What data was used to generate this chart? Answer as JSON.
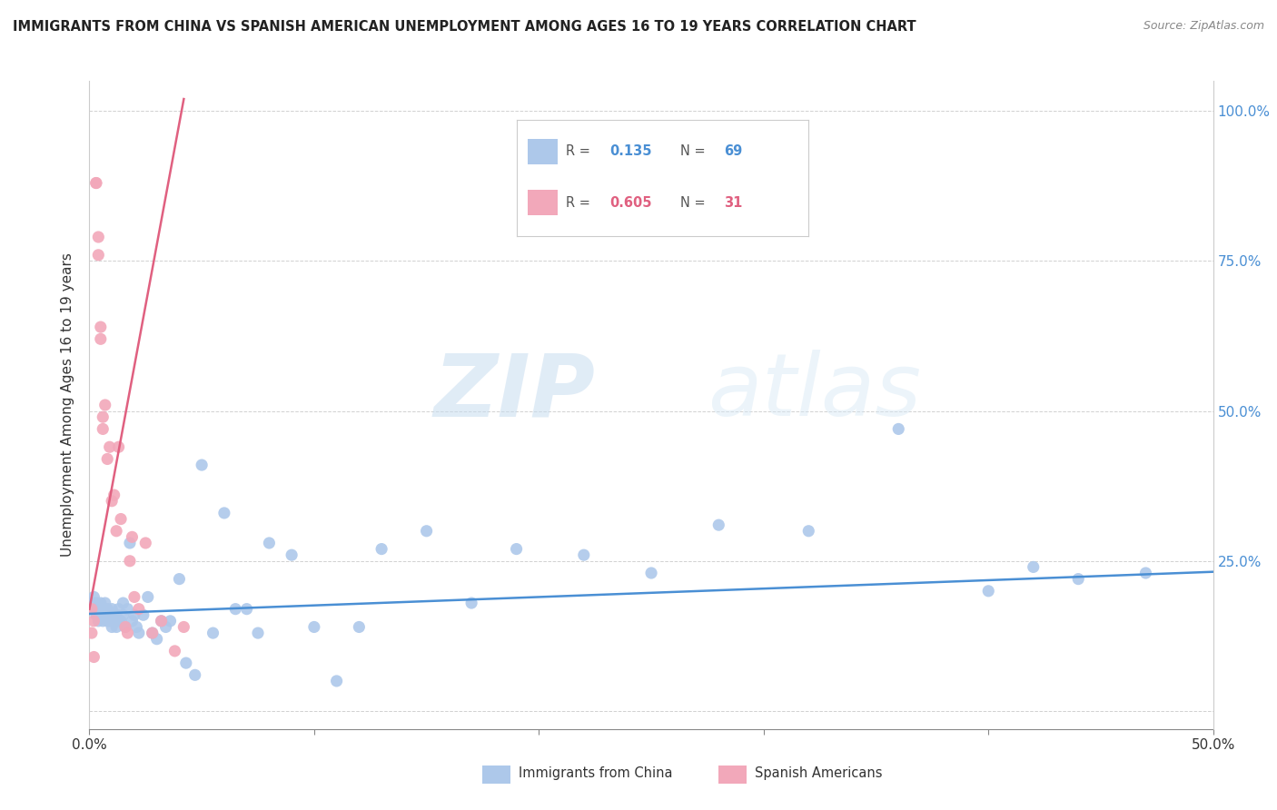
{
  "title": "IMMIGRANTS FROM CHINA VS SPANISH AMERICAN UNEMPLOYMENT AMONG AGES 16 TO 19 YEARS CORRELATION CHART",
  "source": "Source: ZipAtlas.com",
  "ylabel": "Unemployment Among Ages 16 to 19 years",
  "watermark_zip": "ZIP",
  "watermark_atlas": "atlas",
  "legend_blue_r": "0.135",
  "legend_blue_n": "69",
  "legend_pink_r": "0.605",
  "legend_pink_n": "31",
  "legend_label_blue": "Immigrants from China",
  "legend_label_pink": "Spanish Americans",
  "blue_color": "#adc8ea",
  "pink_color": "#f2a8ba",
  "blue_line_color": "#4a8fd4",
  "pink_line_color": "#e06080",
  "right_tick_color": "#4a8fd4",
  "xlim": [
    0.0,
    0.5
  ],
  "ylim": [
    -0.03,
    1.05
  ],
  "ytick_values": [
    0.0,
    0.25,
    0.5,
    0.75,
    1.0
  ],
  "ytick_right_labels": [
    "",
    "25.0%",
    "50.0%",
    "75.0%",
    "100.0%"
  ],
  "xtick_positions": [
    0.0,
    0.1,
    0.2,
    0.3,
    0.4,
    0.5
  ],
  "xtick_labels": [
    "0.0%",
    "",
    "",
    "",
    "",
    "50.0%"
  ],
  "blue_scatter_x": [
    0.001,
    0.002,
    0.002,
    0.003,
    0.003,
    0.004,
    0.004,
    0.005,
    0.005,
    0.006,
    0.006,
    0.007,
    0.007,
    0.008,
    0.008,
    0.009,
    0.009,
    0.01,
    0.01,
    0.011,
    0.011,
    0.012,
    0.012,
    0.013,
    0.013,
    0.014,
    0.015,
    0.015,
    0.016,
    0.017,
    0.018,
    0.019,
    0.02,
    0.021,
    0.022,
    0.024,
    0.026,
    0.028,
    0.03,
    0.032,
    0.034,
    0.036,
    0.04,
    0.043,
    0.047,
    0.05,
    0.055,
    0.06,
    0.065,
    0.07,
    0.075,
    0.08,
    0.09,
    0.1,
    0.11,
    0.12,
    0.13,
    0.15,
    0.17,
    0.19,
    0.22,
    0.25,
    0.28,
    0.32,
    0.36,
    0.4,
    0.42,
    0.44,
    0.47
  ],
  "blue_scatter_y": [
    0.18,
    0.17,
    0.19,
    0.16,
    0.18,
    0.15,
    0.17,
    0.16,
    0.18,
    0.17,
    0.15,
    0.16,
    0.18,
    0.15,
    0.17,
    0.16,
    0.15,
    0.17,
    0.14,
    0.16,
    0.15,
    0.16,
    0.14,
    0.15,
    0.17,
    0.15,
    0.16,
    0.18,
    0.14,
    0.17,
    0.28,
    0.15,
    0.16,
    0.14,
    0.13,
    0.16,
    0.19,
    0.13,
    0.12,
    0.15,
    0.14,
    0.15,
    0.22,
    0.08,
    0.06,
    0.41,
    0.13,
    0.33,
    0.17,
    0.17,
    0.13,
    0.28,
    0.26,
    0.14,
    0.05,
    0.14,
    0.27,
    0.3,
    0.18,
    0.27,
    0.26,
    0.23,
    0.31,
    0.3,
    0.47,
    0.2,
    0.24,
    0.22,
    0.23
  ],
  "pink_scatter_x": [
    0.001,
    0.001,
    0.002,
    0.002,
    0.003,
    0.003,
    0.004,
    0.004,
    0.005,
    0.005,
    0.006,
    0.006,
    0.007,
    0.008,
    0.009,
    0.01,
    0.011,
    0.012,
    0.013,
    0.014,
    0.016,
    0.017,
    0.018,
    0.019,
    0.02,
    0.022,
    0.025,
    0.028,
    0.032,
    0.038,
    0.042
  ],
  "pink_scatter_y": [
    0.17,
    0.13,
    0.15,
    0.09,
    0.88,
    0.88,
    0.79,
    0.76,
    0.62,
    0.64,
    0.47,
    0.49,
    0.51,
    0.42,
    0.44,
    0.35,
    0.36,
    0.3,
    0.44,
    0.32,
    0.14,
    0.13,
    0.25,
    0.29,
    0.19,
    0.17,
    0.28,
    0.13,
    0.15,
    0.1,
    0.14
  ],
  "blue_trendline_x": [
    0.0,
    0.5
  ],
  "blue_trendline_y": [
    0.162,
    0.232
  ],
  "pink_trendline_x": [
    0.0,
    0.042
  ],
  "pink_trendline_y": [
    0.17,
    1.02
  ]
}
